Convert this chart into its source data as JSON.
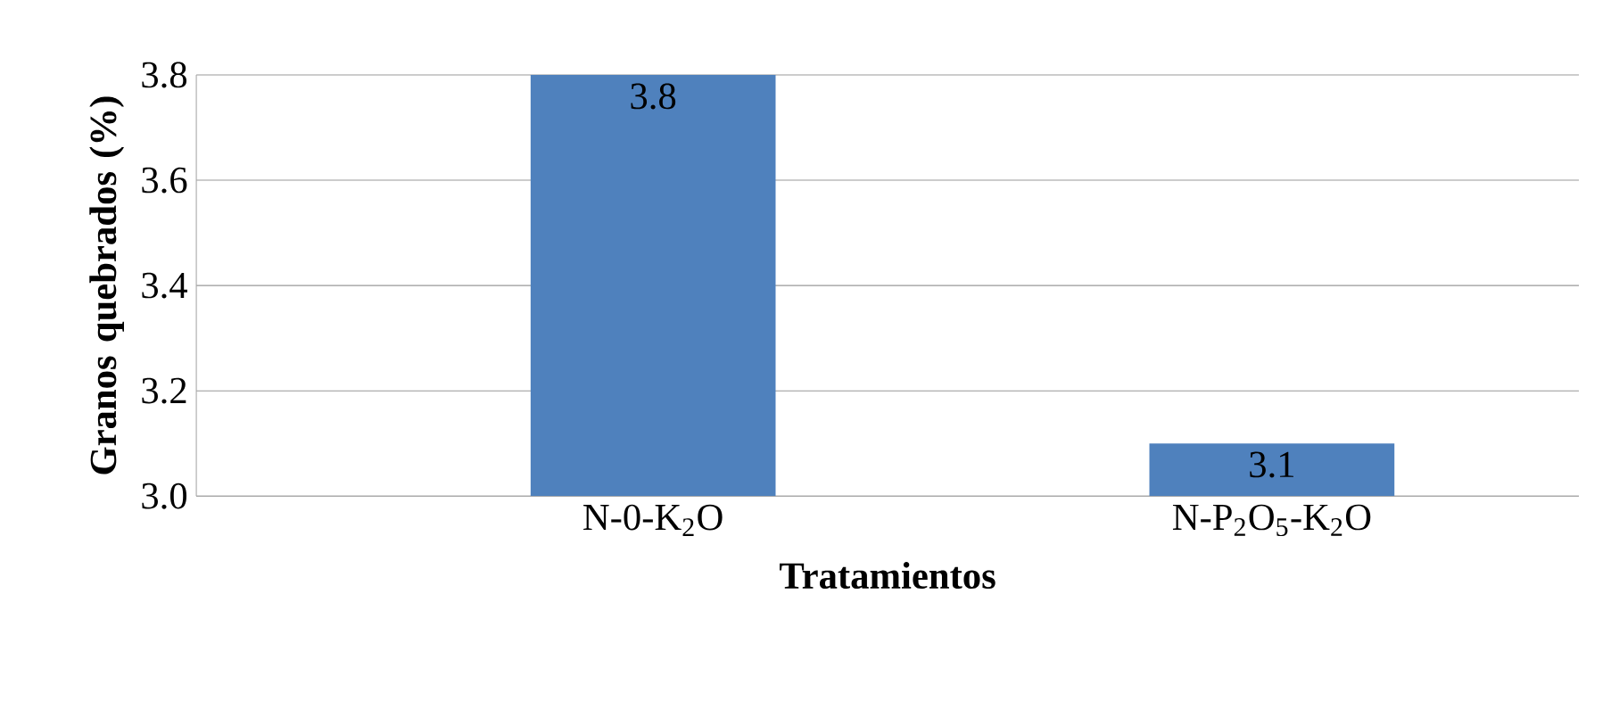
{
  "chart_data": {
    "type": "bar",
    "categories": [
      "N-0-K$_{2}$O",
      "N-P$_{2}$O$_{5}$-K$_{2}$O"
    ],
    "values": [
      3.8,
      3.1
    ],
    "color": "#4f81bd",
    "xlabel": "Tratamientos",
    "ylabel": "Granos quebrados (%)",
    "ylim": [
      3.0,
      3.8
    ],
    "yticks": [
      {
        "value": 3.0,
        "label": "3.0"
      },
      {
        "value": 3.2,
        "label": "3.2"
      },
      {
        "value": 3.4,
        "label": "3.4"
      },
      {
        "value": 3.6,
        "label": "3.6"
      },
      {
        "value": 3.8,
        "label": "3.8"
      }
    ],
    "grid": "y",
    "data_labels": true
  }
}
